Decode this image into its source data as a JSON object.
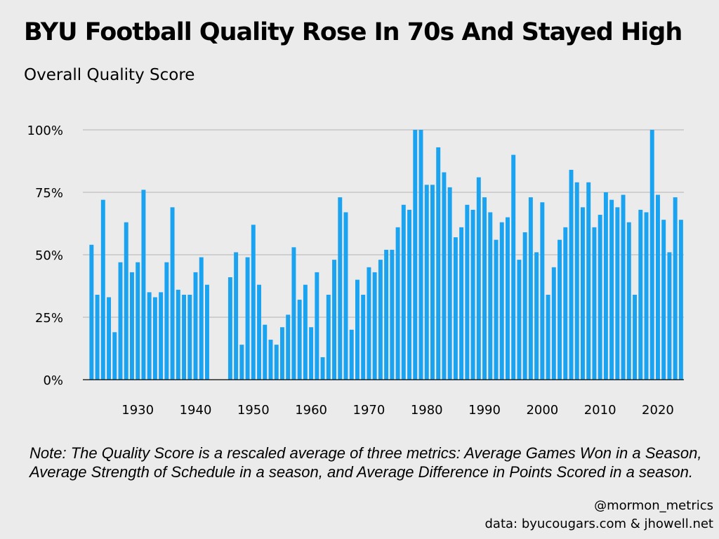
{
  "header": {
    "title": "BYU Football Quality Rose In 70s And Stayed High",
    "subtitle": "Overall Quality Score"
  },
  "footer": {
    "note": "Note: The Quality Score is a rescaled average of three metrics: Average Games Won in a Season, Average Strength of Schedule in a season, and Average Difference in Points Scored in a season.",
    "handle": "@mormon_metrics",
    "source": "data: byucougars.com & jhowell.net"
  },
  "colors": {
    "bar": "#1aa3f0",
    "grid": "#b3b3b3",
    "axis": "#000000",
    "background": "#ebebeb"
  },
  "chart_data": {
    "type": "bar",
    "title": "BYU Football Quality Rose In 70s And Stayed High",
    "subtitle": "Overall Quality Score",
    "xlabel": "",
    "ylabel": "",
    "ylim": [
      0,
      1
    ],
    "yticks": [
      0,
      0.25,
      0.5,
      0.75,
      1.0
    ],
    "ytick_labels": [
      "0%",
      "25%",
      "50%",
      "75%",
      "100%"
    ],
    "xticks": [
      1930,
      1940,
      1950,
      1960,
      1970,
      1980,
      1990,
      2000,
      2010,
      2020
    ],
    "xtick_labels": [
      "1930",
      "1940",
      "1950",
      "1960",
      "1970",
      "1980",
      "1990",
      "2000",
      "2010",
      "2020"
    ],
    "grid": "horizontal",
    "series": [
      {
        "name": "Overall Quality Score",
        "x": [
          1922,
          1923,
          1924,
          1925,
          1926,
          1927,
          1928,
          1929,
          1930,
          1931,
          1932,
          1933,
          1934,
          1935,
          1936,
          1937,
          1938,
          1939,
          1940,
          1941,
          1942,
          1946,
          1947,
          1948,
          1949,
          1950,
          1951,
          1952,
          1953,
          1954,
          1955,
          1956,
          1957,
          1958,
          1959,
          1960,
          1961,
          1962,
          1963,
          1964,
          1965,
          1966,
          1967,
          1968,
          1969,
          1970,
          1971,
          1972,
          1973,
          1974,
          1975,
          1976,
          1977,
          1978,
          1979,
          1980,
          1981,
          1982,
          1983,
          1984,
          1985,
          1986,
          1987,
          1988,
          1989,
          1990,
          1991,
          1992,
          1993,
          1994,
          1995,
          1996,
          1997,
          1998,
          1999,
          2000,
          2001,
          2002,
          2003,
          2004,
          2005,
          2006,
          2007,
          2008,
          2009,
          2010,
          2011,
          2012,
          2013,
          2014,
          2015,
          2016,
          2017,
          2018,
          2019,
          2020,
          2021,
          2022,
          2023,
          2024
        ],
        "values": [
          0.54,
          0.34,
          0.72,
          0.33,
          0.19,
          0.47,
          0.63,
          0.43,
          0.47,
          0.76,
          0.35,
          0.33,
          0.35,
          0.47,
          0.69,
          0.36,
          0.34,
          0.34,
          0.43,
          0.49,
          0.38,
          0.41,
          0.51,
          0.14,
          0.49,
          0.62,
          0.38,
          0.22,
          0.16,
          0.14,
          0.21,
          0.26,
          0.53,
          0.32,
          0.38,
          0.21,
          0.43,
          0.09,
          0.34,
          0.48,
          0.73,
          0.67,
          0.2,
          0.4,
          0.34,
          0.45,
          0.43,
          0.48,
          0.52,
          0.52,
          0.61,
          0.7,
          0.68,
          1.0,
          1.0,
          0.78,
          0.78,
          0.93,
          0.83,
          0.77,
          0.57,
          0.61,
          0.7,
          0.68,
          0.81,
          0.73,
          0.67,
          0.56,
          0.63,
          0.65,
          0.9,
          0.48,
          0.59,
          0.73,
          0.51,
          0.71,
          0.34,
          0.45,
          0.56,
          0.61,
          0.84,
          0.79,
          0.69,
          0.79,
          0.61,
          0.66,
          0.75,
          0.72,
          0.69,
          0.74,
          0.63,
          0.34,
          0.68,
          0.67,
          1.0,
          0.74,
          0.64,
          0.51,
          0.73,
          0.64
        ]
      }
    ]
  }
}
